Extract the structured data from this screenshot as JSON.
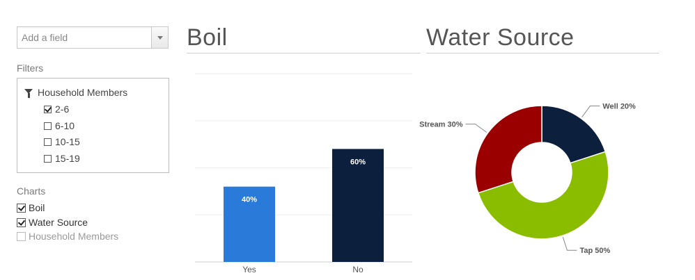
{
  "sidebar": {
    "add_field_placeholder": "Add a field",
    "filters_title": "Filters",
    "filter_group": "Household Members",
    "filter_options": [
      {
        "label": "2-6",
        "checked": true
      },
      {
        "label": "6-10",
        "checked": false
      },
      {
        "label": "10-15",
        "checked": false
      },
      {
        "label": "15-19",
        "checked": false
      }
    ],
    "charts_title": "Charts",
    "chart_options": [
      {
        "label": "Boil",
        "checked": true
      },
      {
        "label": "Water Source",
        "checked": true
      },
      {
        "label": "Household Members",
        "checked": false
      }
    ]
  },
  "colors": {
    "boil_yes": "#2a7ad9",
    "boil_no": "#0c1f3d",
    "well": "#0c1f3d",
    "tap": "#8abd00",
    "stream": "#9a0000"
  },
  "chart_data": [
    {
      "type": "bar",
      "title": "Boil",
      "categories": [
        "Yes",
        "No"
      ],
      "values": [
        40,
        60
      ],
      "data_labels": [
        "40%",
        "60%"
      ],
      "ylim": [
        0,
        100
      ],
      "grid": true
    },
    {
      "type": "pie",
      "title": "Water Source",
      "donut": true,
      "slices": [
        {
          "label": "Well 20%",
          "value": 20
        },
        {
          "label": "Tap 50%",
          "value": 50
        },
        {
          "label": "Stream 30%",
          "value": 30
        }
      ]
    }
  ]
}
